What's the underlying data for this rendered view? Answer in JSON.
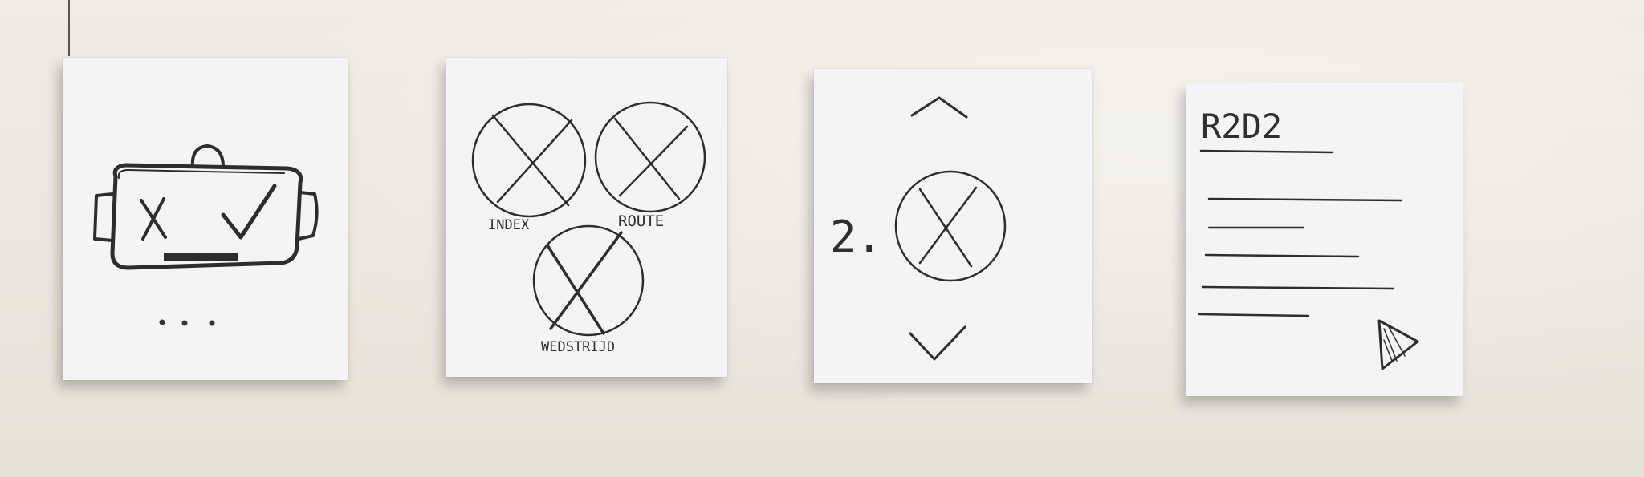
{
  "cards": [
    {
      "id": "start-screen",
      "controls": {
        "reject_symbol": "✕",
        "accept_symbol": "✓"
      },
      "indicator": "• • •"
    },
    {
      "id": "menu-screen",
      "buttons": [
        "INDEX",
        "ROUTE",
        "WEDSTRIJD"
      ]
    },
    {
      "id": "step-screen",
      "step_label": "2."
    },
    {
      "id": "detail-screen",
      "title": "R2D2"
    }
  ]
}
